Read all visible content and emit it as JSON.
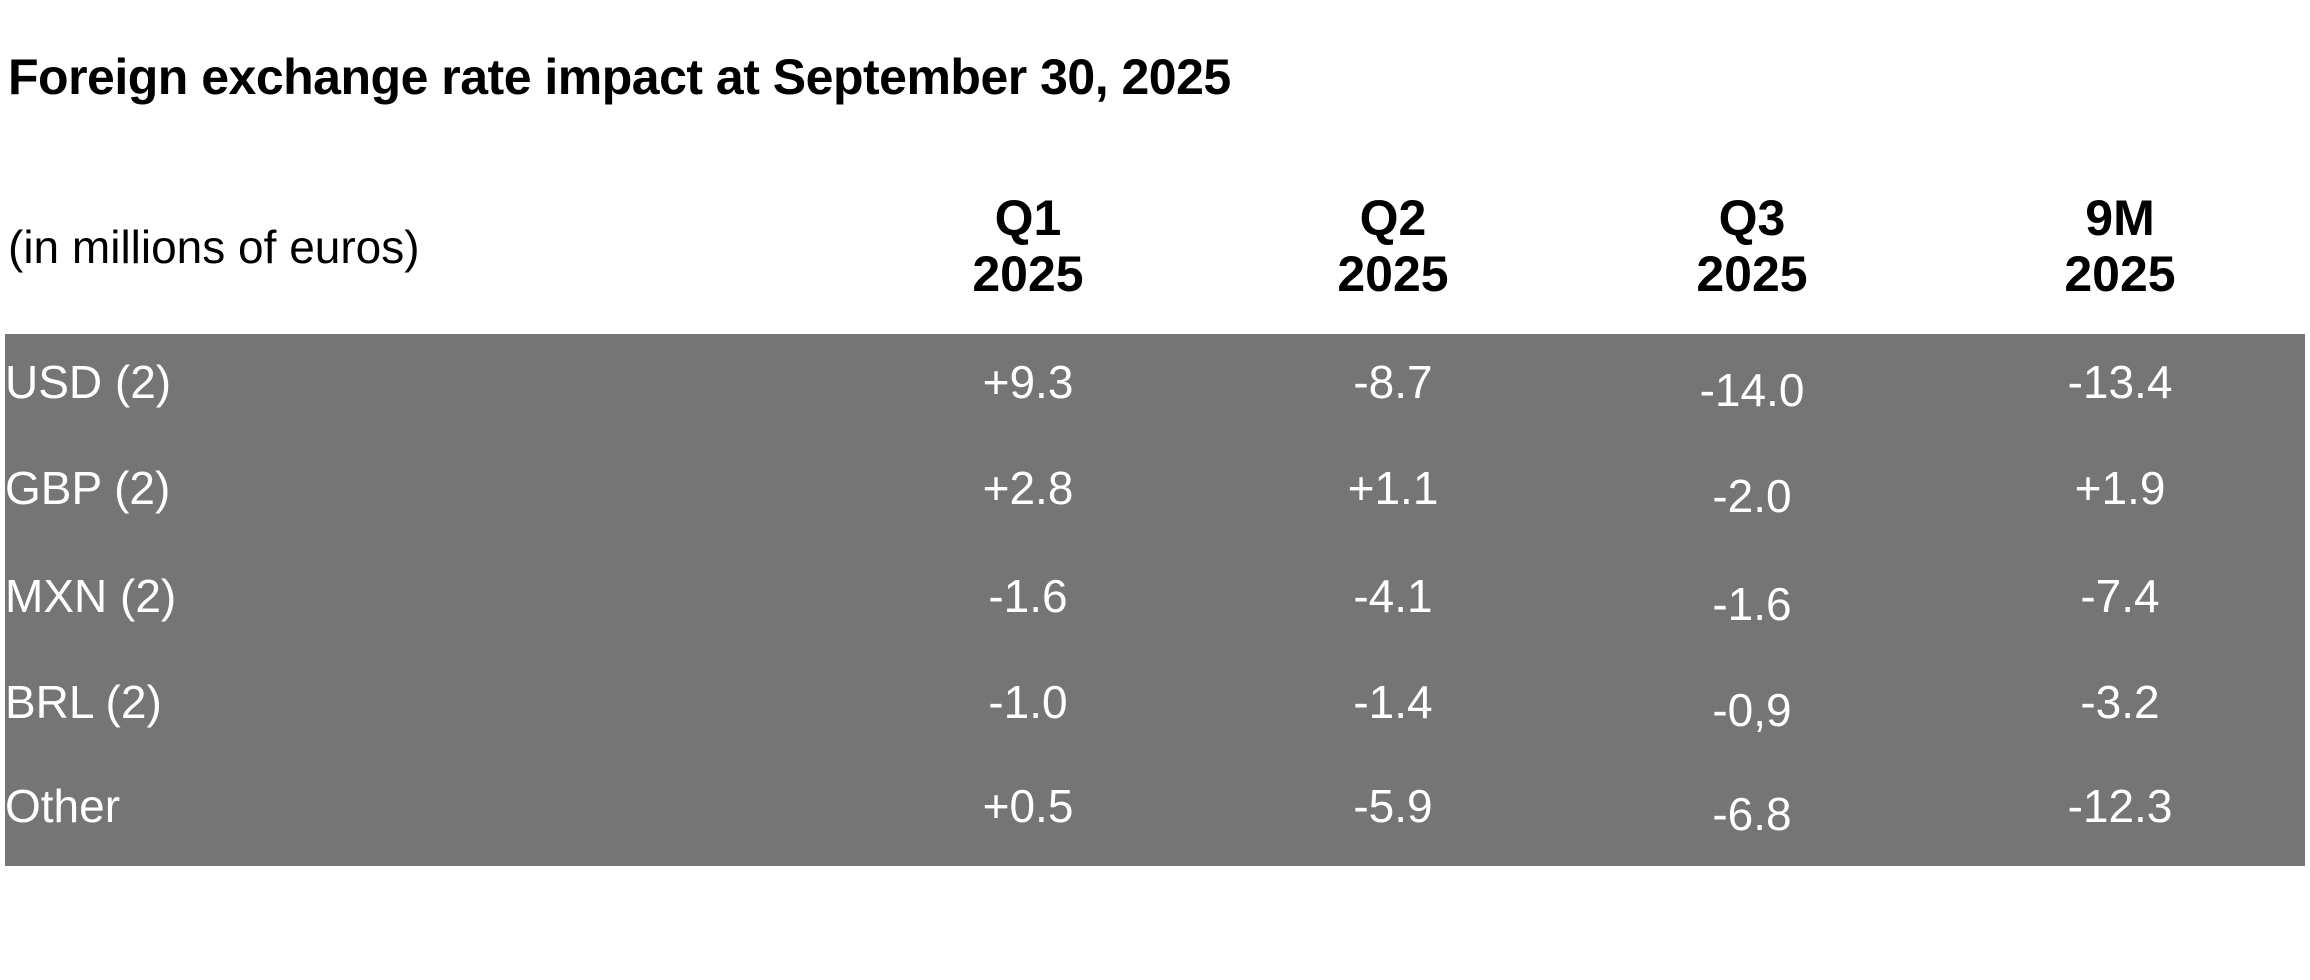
{
  "title": "Foreign exchange rate impact at September 30,  2025",
  "unit_label": "(in millions of euros)",
  "columns": [
    {
      "line1": "Q1",
      "line2": "2025"
    },
    {
      "line1": "Q2",
      "line2": "2025"
    },
    {
      "line1": "Q3",
      "line2": "2025"
    },
    {
      "line1": "9M",
      "line2": "2025"
    }
  ],
  "rows": [
    {
      "label": "USD (2)",
      "values": [
        "+9.3",
        "-8.7",
        "-14.0",
        "-13.4"
      ]
    },
    {
      "label": "GBP (2)",
      "values": [
        "+2.8",
        "+1.1",
        "-2.0",
        "+1.9"
      ]
    },
    {
      "label": "MXN (2)",
      "values": [
        "-1.6",
        "-4.1",
        "-1.6",
        "-7.4"
      ]
    },
    {
      "label": "BRL (2)",
      "values": [
        "-1.0",
        "-1.4",
        "-0,9",
        "-3.2"
      ]
    },
    {
      "label": "Other",
      "values": [
        "+0.5",
        "-5.9",
        "-6.8",
        "-12.3"
      ]
    }
  ],
  "colors": {
    "table_bg": "#757575",
    "table_text": "#ffffff"
  }
}
